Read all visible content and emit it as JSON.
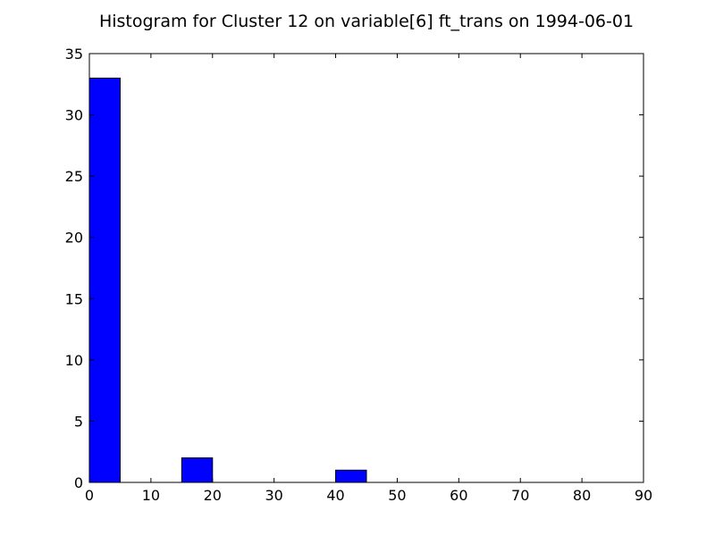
{
  "chart_data": {
    "type": "bar",
    "title": "Histogram for Cluster 12 on variable[6] ft_trans on 1994-06-01",
    "xlabel": "",
    "ylabel": "",
    "xlim": [
      0,
      90
    ],
    "ylim": [
      0,
      35
    ],
    "xticks": [
      0,
      10,
      20,
      30,
      40,
      50,
      60,
      70,
      80,
      90
    ],
    "yticks": [
      0,
      5,
      10,
      15,
      20,
      25,
      30,
      35
    ],
    "bins": [
      {
        "x_start": 0,
        "x_end": 5,
        "count": 33
      },
      {
        "x_start": 15,
        "x_end": 20,
        "count": 2
      },
      {
        "x_start": 40,
        "x_end": 45,
        "count": 1
      }
    ],
    "bar_color": "#0000ff",
    "edge_color": "#000000",
    "grid": false,
    "legend": "none"
  }
}
